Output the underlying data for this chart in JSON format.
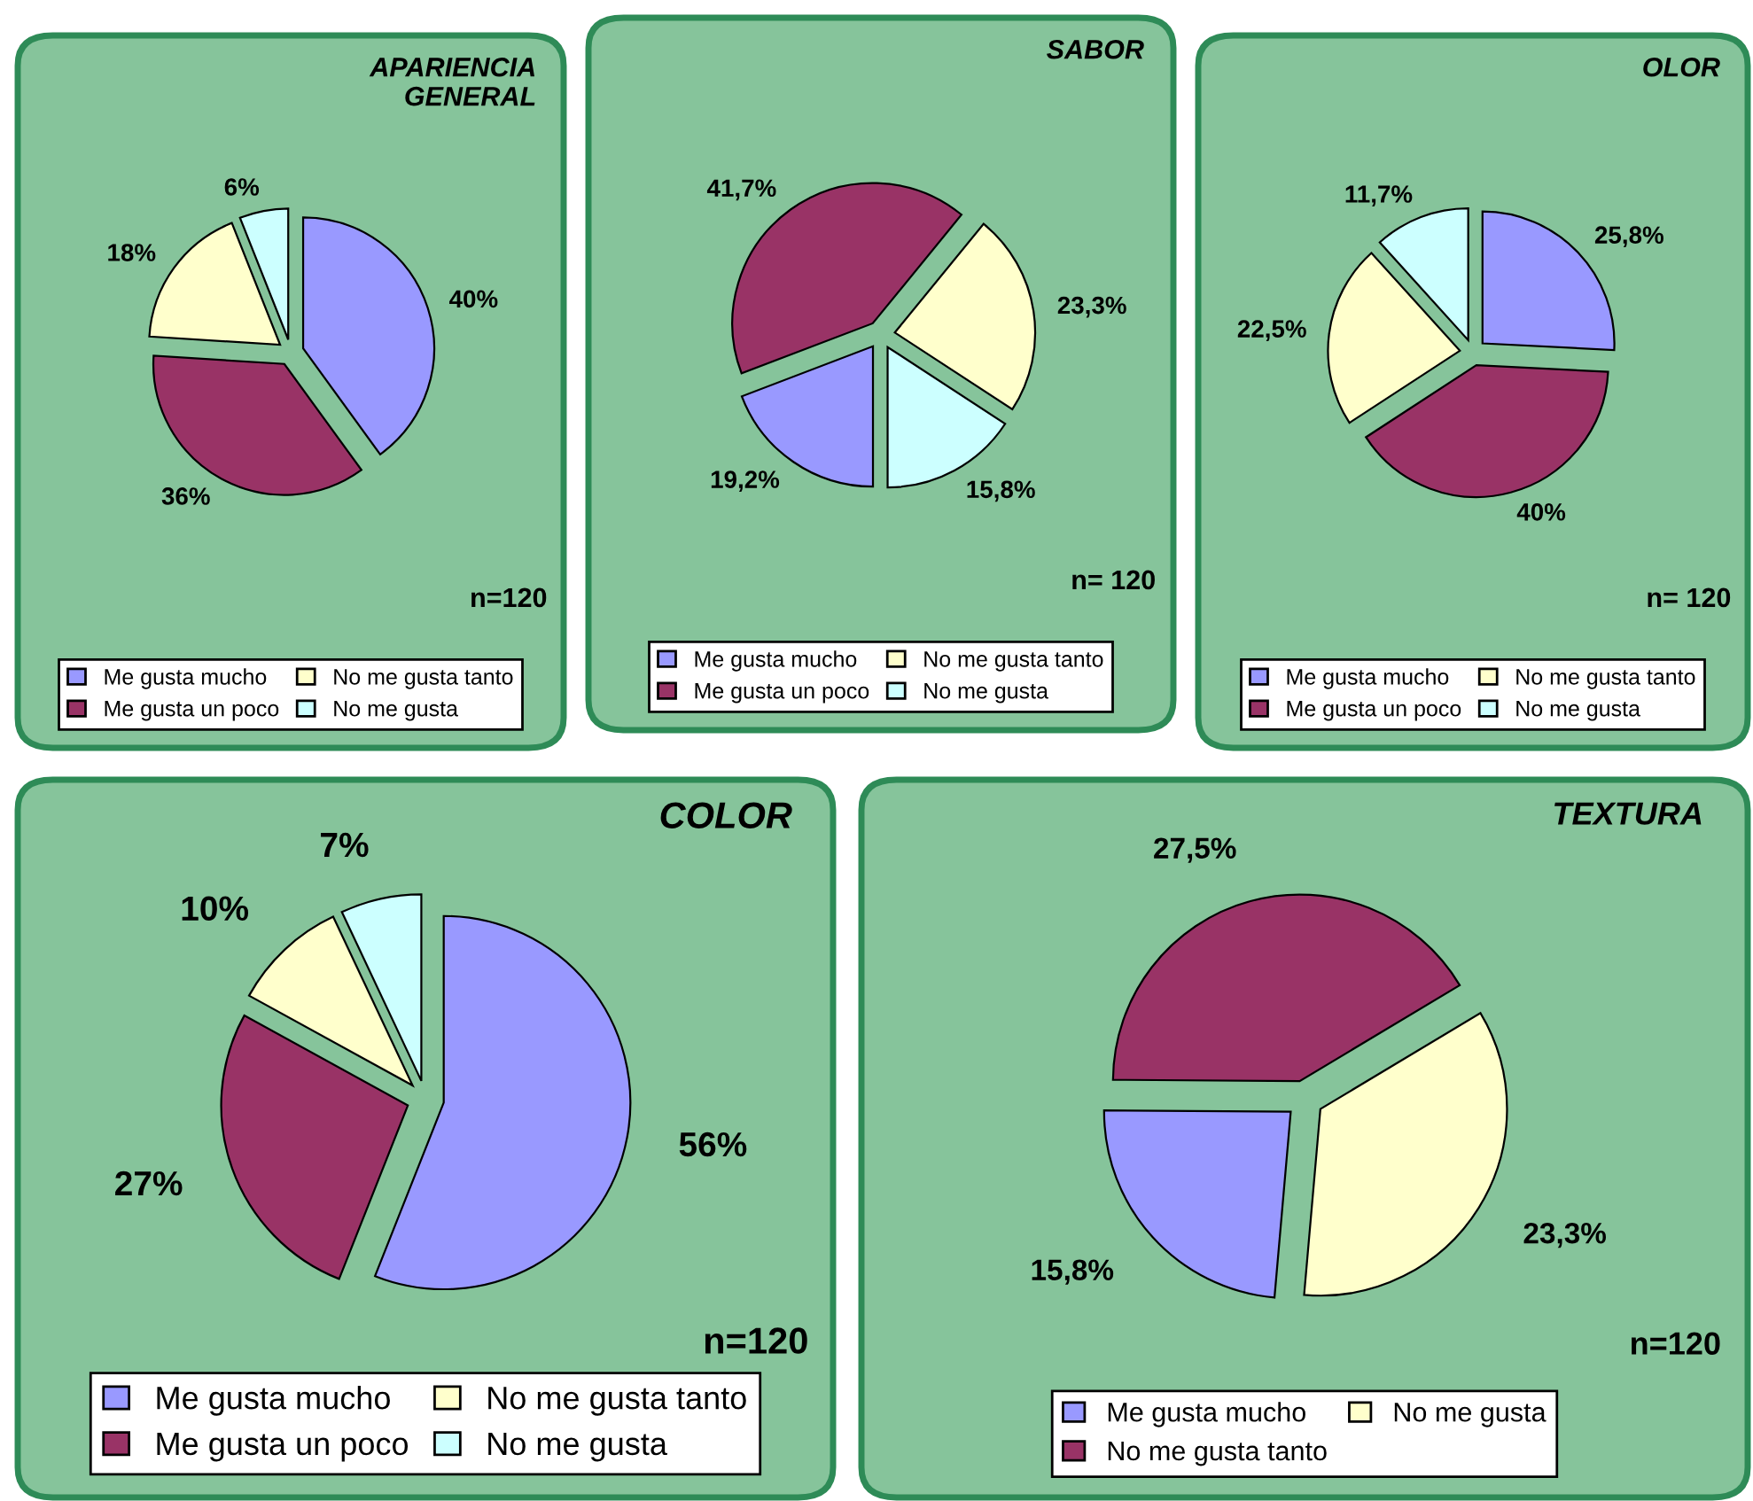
{
  "chart_data": [
    {
      "type": "pie",
      "title": "APARIENCIA\nGENERAL",
      "categories": [
        "Me gusta mucho",
        "Me gusta un poco",
        "No me gusta tanto",
        "No me gusta"
      ],
      "values": [
        40,
        36,
        18,
        6
      ],
      "value_labels": [
        "40%",
        "36%",
        "18%",
        "6%"
      ],
      "colors": [
        "#9999ff",
        "#993366",
        "#ffffcc",
        "#ccffff"
      ],
      "legend": "bottom",
      "annotations": [
        "n=120"
      ]
    },
    {
      "type": "pie",
      "title": "SABOR",
      "categories": [
        "Me gusta mucho",
        "Me gusta un poco",
        "No me gusta tanto",
        "No me gusta"
      ],
      "values": [
        19.2,
        41.7,
        23.3,
        15.8
      ],
      "value_labels": [
        "19,2%",
        "41,7%",
        "23,3%",
        "15,8%"
      ],
      "colors": [
        "#9999ff",
        "#993366",
        "#ffffcc",
        "#ccffff"
      ],
      "legend": "bottom",
      "annotations": [
        "n= 120"
      ]
    },
    {
      "type": "pie",
      "title": "OLOR",
      "categories": [
        "Me gusta mucho",
        "Me gusta un poco",
        "No me gusta tanto",
        "No me gusta"
      ],
      "values": [
        25.8,
        40,
        22.5,
        11.7
      ],
      "value_labels": [
        "25,8%",
        "40%",
        "22,5%",
        "11,7%"
      ],
      "colors": [
        "#9999ff",
        "#993366",
        "#ffffcc",
        "#ccffff"
      ],
      "legend": "bottom",
      "annotations": [
        "n= 120"
      ]
    },
    {
      "type": "pie",
      "title": " COLOR",
      "categories": [
        "Me gusta mucho",
        "Me gusta un poco",
        "No me gusta tanto",
        "No me gusta"
      ],
      "values": [
        56,
        27,
        10,
        7
      ],
      "value_labels": [
        "56%",
        "27%",
        "10%",
        "7%"
      ],
      "colors": [
        "#9999ff",
        "#993366",
        "#ffffcc",
        "#ccffff"
      ],
      "legend": "bottom",
      "annotations": [
        "n=120"
      ]
    },
    {
      "type": "pie",
      "title": "TEXTURA",
      "categories": [
        "Me gusta mucho",
        "No me gusta tanto",
        "No me gusta"
      ],
      "values": [
        15.8,
        27.5,
        23.3
      ],
      "value_labels": [
        "15,8%",
        "27,5%",
        "23,3%"
      ],
      "colors": [
        "#9999ff",
        "#993366",
        "#ffffcc"
      ],
      "legend": "bottom",
      "annotations": [
        "n=120"
      ]
    }
  ]
}
